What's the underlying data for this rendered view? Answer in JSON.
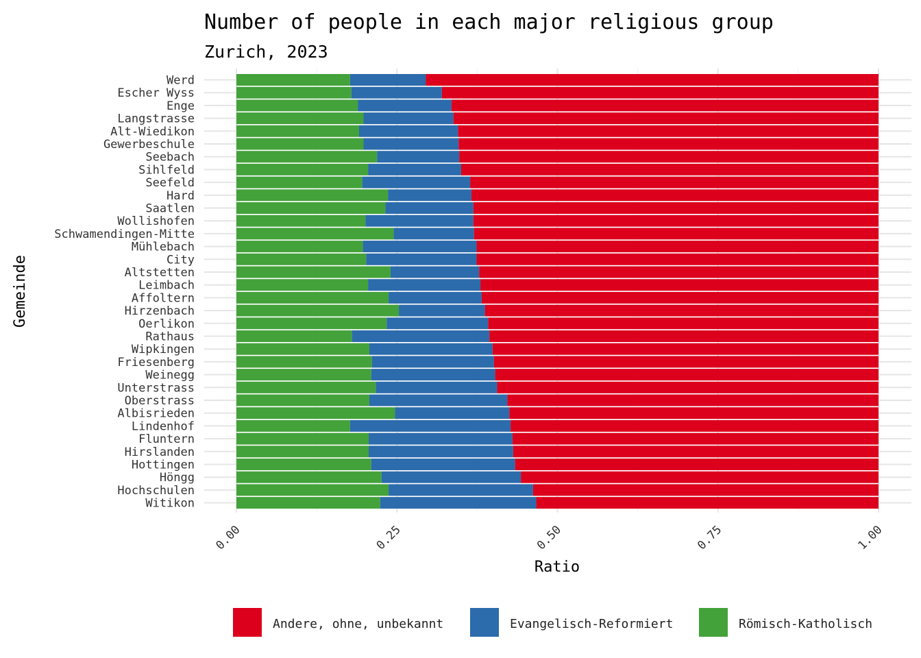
{
  "chart_data": {
    "type": "bar",
    "orientation": "horizontal",
    "stacked": "proportional",
    "title": "Number of people in each major religious group",
    "subtitle": "Zurich, 2023",
    "xlabel": "Ratio",
    "ylabel": "Gemeinde",
    "xlim": [
      0,
      1
    ],
    "x_ticks": [
      "0.00",
      "0.25",
      "0.50",
      "0.75",
      "1.00"
    ],
    "grid": true,
    "legend_position": "bottom",
    "categories": [
      "Werd",
      "Escher Wyss",
      "Enge",
      "Langstrasse",
      "Alt-Wiedikon",
      "Gewerbeschule",
      "Seebach",
      "Sihlfeld",
      "Seefeld",
      "Hard",
      "Saatlen",
      "Wollishofen",
      "Schwamendingen-Mitte",
      "Mühlebach",
      "City",
      "Altstetten",
      "Leimbach",
      "Affoltern",
      "Hirzenbach",
      "Oerlikon",
      "Rathaus",
      "Wipkingen",
      "Friesenberg",
      "Weinegg",
      "Unterstrass",
      "Oberstrass",
      "Albisrieden",
      "Lindenhof",
      "Fluntern",
      "Hirslanden",
      "Hottingen",
      "Höngg",
      "Hochschulen",
      "Witikon"
    ],
    "series": [
      {
        "name": "Römisch-Katholisch",
        "color": "#43A23A",
        "values": [
          0.177,
          0.179,
          0.189,
          0.198,
          0.191,
          0.198,
          0.219,
          0.205,
          0.196,
          0.236,
          0.232,
          0.201,
          0.245,
          0.197,
          0.202,
          0.24,
          0.205,
          0.237,
          0.253,
          0.234,
          0.18,
          0.207,
          0.211,
          0.21,
          0.217,
          0.207,
          0.247,
          0.177,
          0.206,
          0.206,
          0.21,
          0.226,
          0.237,
          0.224
        ]
      },
      {
        "name": "Evangelisch-Reformiert",
        "color": "#2C6BAC",
        "values": [
          0.118,
          0.141,
          0.146,
          0.14,
          0.154,
          0.148,
          0.128,
          0.145,
          0.168,
          0.13,
          0.137,
          0.168,
          0.125,
          0.177,
          0.172,
          0.138,
          0.175,
          0.145,
          0.134,
          0.158,
          0.214,
          0.192,
          0.19,
          0.193,
          0.189,
          0.215,
          0.178,
          0.25,
          0.224,
          0.225,
          0.224,
          0.217,
          0.225,
          0.243
        ]
      },
      {
        "name": "Andere, ohne, unbekannt",
        "color": "#DC001D",
        "values": [
          0.705,
          0.68,
          0.665,
          0.662,
          0.655,
          0.654,
          0.653,
          0.65,
          0.636,
          0.634,
          0.631,
          0.631,
          0.63,
          0.626,
          0.626,
          0.622,
          0.62,
          0.618,
          0.613,
          0.608,
          0.606,
          0.601,
          0.599,
          0.597,
          0.594,
          0.578,
          0.575,
          0.573,
          0.57,
          0.569,
          0.566,
          0.557,
          0.538,
          0.533
        ]
      }
    ],
    "legend_order": [
      "Andere, ohne, unbekannt",
      "Evangelisch-Reformiert",
      "Römisch-Katholisch"
    ]
  }
}
